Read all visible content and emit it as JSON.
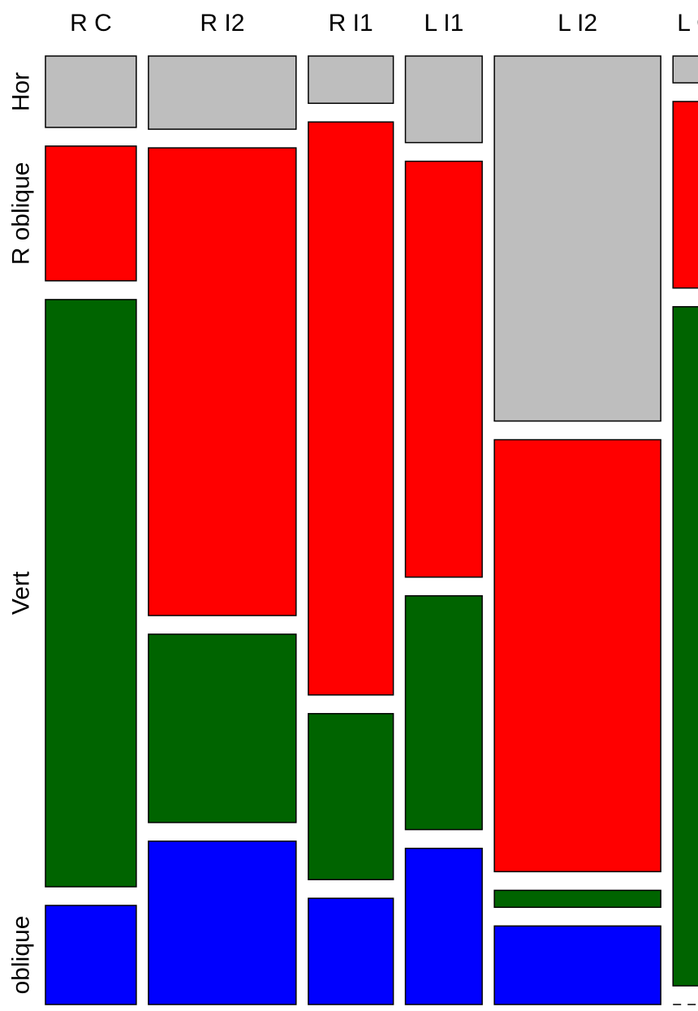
{
  "chart_data": {
    "type": "mosaic",
    "title": "",
    "categories": [
      "R C",
      "R I2",
      "R I1",
      "L I1",
      "L I2",
      "L C"
    ],
    "row_labels": [
      "Hor",
      "R oblique",
      "Vert",
      "oblique"
    ],
    "row_colors": [
      "#bebebe",
      "#ff0000",
      "#006400",
      "#0000ff"
    ],
    "column_shares": [
      0.155,
      0.252,
      0.145,
      0.131,
      0.284,
      0.077
    ],
    "proportions": [
      [
        0.08,
        0.151,
        0.658,
        0.111
      ],
      [
        0.082,
        0.524,
        0.211,
        0.183
      ],
      [
        0.053,
        0.642,
        0.186,
        0.119
      ],
      [
        0.097,
        0.466,
        0.262,
        0.175
      ],
      [
        0.409,
        0.484,
        0.019,
        0.088
      ],
      [
        0.03,
        0.209,
        0.761,
        0.0
      ]
    ]
  }
}
